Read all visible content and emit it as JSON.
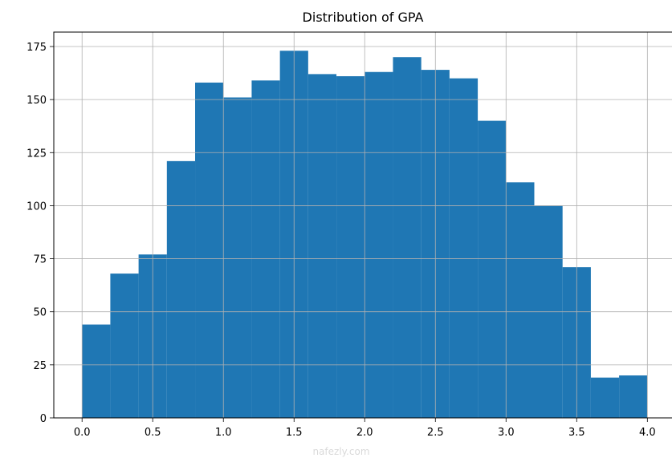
{
  "chart_data": {
    "type": "bar",
    "title": "Distribution of GPA",
    "xlabel": "",
    "ylabel": "",
    "bin_edges": [
      0.0,
      0.2,
      0.4,
      0.6,
      0.8,
      1.0,
      1.2,
      1.4,
      1.6,
      1.8,
      2.0,
      2.2,
      2.4,
      2.6,
      2.8,
      3.0,
      3.2,
      3.4,
      3.6,
      3.8,
      4.0
    ],
    "values": [
      44,
      68,
      77,
      121,
      158,
      151,
      159,
      173,
      162,
      161,
      163,
      170,
      164,
      160,
      140,
      111,
      100,
      71,
      19,
      20
    ],
    "xlim": [
      -0.2,
      4.18
    ],
    "ylim": [
      0,
      181.8
    ],
    "xticks": [
      "0.0",
      "0.5",
      "1.0",
      "1.5",
      "2.0",
      "2.5",
      "3.0",
      "3.5",
      "4.0"
    ],
    "xtick_values": [
      0,
      0.5,
      1,
      1.5,
      2,
      2.5,
      3,
      3.5,
      4
    ],
    "yticks": [
      "0",
      "25",
      "50",
      "75",
      "100",
      "125",
      "150",
      "175"
    ],
    "ytick_values": [
      0,
      25,
      50,
      75,
      100,
      125,
      150,
      175
    ],
    "grid": true,
    "bar_color": "#1f77b4",
    "grid_color": "#b0b0b0"
  },
  "watermark": "nafezly.com"
}
